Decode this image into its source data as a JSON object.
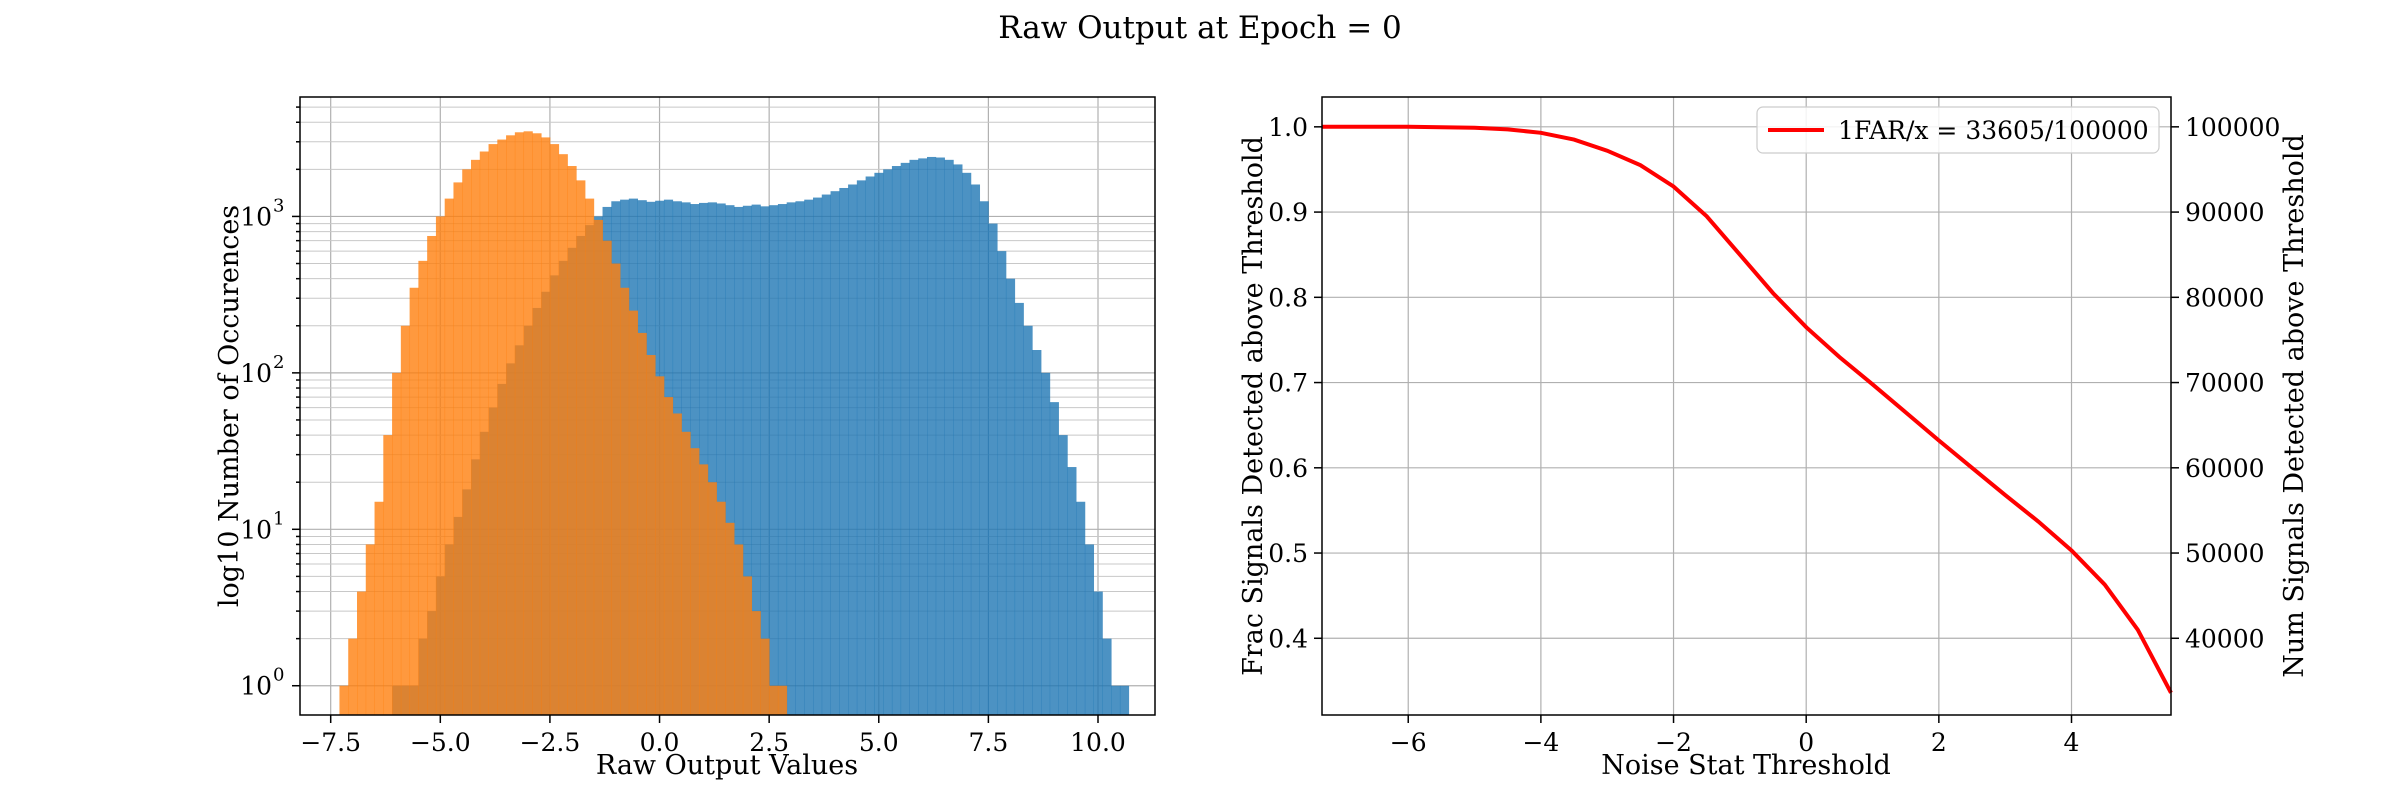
{
  "figure": {
    "title": "Raw Output at Epoch = 0"
  },
  "chart_data": [
    {
      "type": "histogram",
      "xlabel": "Raw Output Values",
      "ylabel": "log10 Number of Occurences",
      "xlim": [
        -8.2,
        11.3
      ],
      "ylim": [
        0.65,
        5800
      ],
      "yscale": "log",
      "grid": true,
      "x_ticks": [
        -7.5,
        -5.0,
        -2.5,
        0.0,
        2.5,
        5.0,
        7.5,
        10.0
      ],
      "x_tick_labels": [
        "−7.5",
        "−5.0",
        "−2.5",
        "0.0",
        "2.5",
        "5.0",
        "7.5",
        "10.0"
      ],
      "y_ticks": [
        1,
        10,
        100,
        1000
      ],
      "y_tick_labels": [
        "10",
        "10",
        "10",
        "10"
      ],
      "y_tick_exponents": [
        "0",
        "1",
        "2",
        "3"
      ],
      "bins": {
        "start": -7.3,
        "width": 0.2,
        "count": 90
      },
      "series": [
        {
          "color": "#1f77b4",
          "opacity": 0.8,
          "counts": [
            0,
            0,
            0,
            0,
            0,
            0,
            1,
            1,
            1,
            2,
            3,
            5,
            8,
            12,
            18,
            28,
            42,
            60,
            85,
            115,
            150,
            200,
            260,
            330,
            420,
            520,
            630,
            750,
            880,
            1000,
            1150,
            1250,
            1280,
            1300,
            1270,
            1240,
            1260,
            1280,
            1250,
            1230,
            1200,
            1220,
            1230,
            1210,
            1180,
            1150,
            1170,
            1190,
            1160,
            1180,
            1200,
            1230,
            1250,
            1280,
            1320,
            1380,
            1450,
            1520,
            1600,
            1700,
            1800,
            1900,
            2000,
            2100,
            2200,
            2300,
            2350,
            2400,
            2380,
            2300,
            2150,
            1900,
            1600,
            1250,
            900,
            600,
            400,
            280,
            200,
            140,
            100,
            65,
            40,
            25,
            15,
            8,
            4,
            2,
            1,
            1
          ]
        },
        {
          "color": "#ff7f0e",
          "opacity": 0.8,
          "counts": [
            1,
            2,
            4,
            8,
            15,
            40,
            100,
            200,
            350,
            520,
            750,
            1000,
            1300,
            1650,
            2000,
            2300,
            2600,
            2900,
            3100,
            3300,
            3450,
            3500,
            3400,
            3200,
            2900,
            2500,
            2100,
            1700,
            1300,
            950,
            700,
            500,
            350,
            250,
            180,
            130,
            95,
            70,
            55,
            42,
            33,
            26,
            20,
            15,
            11,
            8,
            5,
            3,
            2,
            1,
            1,
            0,
            0,
            0,
            0,
            0,
            0,
            0,
            0,
            0,
            0,
            0,
            0,
            0,
            0,
            0,
            0,
            0,
            0,
            0,
            0,
            0,
            0,
            0,
            0,
            0,
            0,
            0,
            0,
            0,
            0,
            0,
            0,
            0,
            0,
            0,
            0,
            0,
            0,
            0
          ]
        }
      ]
    },
    {
      "type": "line",
      "xlabel": "Noise Stat Threshold",
      "ylabel": "Frac Signals Detected above Threshold",
      "y2label": "Num Signals Detected above Threshold",
      "xlim": [
        -7.3,
        5.5
      ],
      "ylim": [
        0.31,
        1.035
      ],
      "y2lim": [
        31000,
        103500
      ],
      "grid": true,
      "legend_position": "upper-right",
      "x_ticks": [
        -6,
        -4,
        -2,
        0,
        2,
        4
      ],
      "x_tick_labels": [
        "−6",
        "−4",
        "−2",
        "0",
        "2",
        "4"
      ],
      "y_ticks": [
        0.4,
        0.5,
        0.6,
        0.7,
        0.8,
        0.9,
        1.0
      ],
      "y_tick_labels": [
        "0.4",
        "0.5",
        "0.6",
        "0.7",
        "0.8",
        "0.9",
        "1.0"
      ],
      "y2_ticks": [
        40000,
        50000,
        60000,
        70000,
        80000,
        90000,
        100000
      ],
      "y2_tick_labels": [
        "40000",
        "50000",
        "60000",
        "70000",
        "80000",
        "90000",
        "100000"
      ],
      "series": [
        {
          "name": "1FAR/x = 33605/100000",
          "color": "#ff0000",
          "x": [
            -7.3,
            -6,
            -5,
            -4.5,
            -4,
            -3.5,
            -3,
            -2.5,
            -2,
            -1.5,
            -1,
            -0.5,
            0,
            0.5,
            1,
            1.5,
            2,
            2.5,
            3,
            3.5,
            4,
            4.5,
            5,
            5.5
          ],
          "y": [
            1.0,
            1.0,
            0.999,
            0.997,
            0.993,
            0.985,
            0.972,
            0.955,
            0.93,
            0.895,
            0.85,
            0.805,
            0.765,
            0.73,
            0.698,
            0.665,
            0.632,
            0.6,
            0.568,
            0.537,
            0.503,
            0.463,
            0.41,
            0.336
          ]
        }
      ]
    }
  ]
}
